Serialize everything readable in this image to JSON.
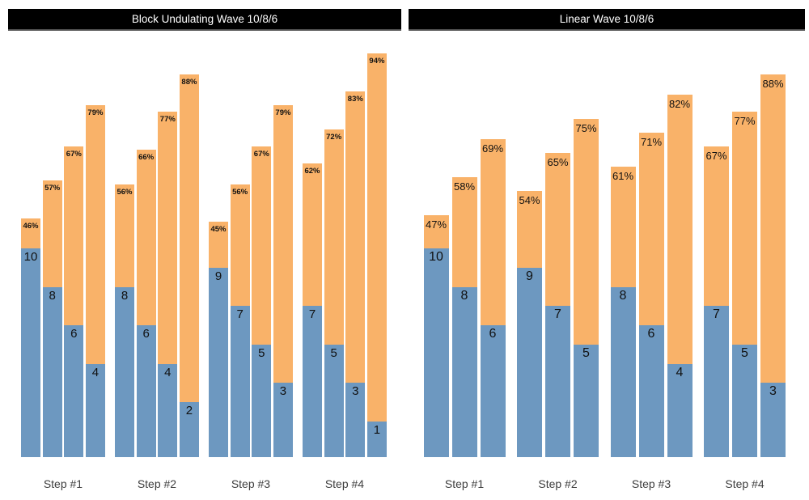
{
  "colors": {
    "background": "#ffffff",
    "reps_bar": "#6d98c0",
    "intensity_bar": "#f9b269",
    "title_bg": "#000000",
    "title_border": "#4e4e4e",
    "title_text": "#ffffff",
    "value_label_text": "#111111",
    "axis_label_text": "#3d3d3d"
  },
  "chart_data": [
    {
      "type": "bar",
      "variant": "grouped-stacked",
      "title": "Block Undulating Wave 10/8/6",
      "categories": [
        "Step #1",
        "Step #2",
        "Step #3",
        "Step #4"
      ],
      "legend": "none",
      "y_axis": "none (values labeled directly on bars)",
      "series_semantics": {
        "bottom_segment": "reps (blue segment, count labeled at its top)",
        "top_segment": "intensity percent (orange segment, % labeled at bar top)"
      },
      "groups": [
        {
          "category": "Step #1",
          "bars": [
            {
              "reps": 10,
              "intensity_pct": 46
            },
            {
              "reps": 8,
              "intensity_pct": 57
            },
            {
              "reps": 6,
              "intensity_pct": 67
            },
            {
              "reps": 4,
              "intensity_pct": 79
            }
          ]
        },
        {
          "category": "Step #2",
          "bars": [
            {
              "reps": 8,
              "intensity_pct": 56
            },
            {
              "reps": 6,
              "intensity_pct": 66
            },
            {
              "reps": 4,
              "intensity_pct": 77
            },
            {
              "reps": 2,
              "intensity_pct": 88
            }
          ]
        },
        {
          "category": "Step #3",
          "bars": [
            {
              "reps": 9,
              "intensity_pct": 45
            },
            {
              "reps": 7,
              "intensity_pct": 56
            },
            {
              "reps": 5,
              "intensity_pct": 67
            },
            {
              "reps": 3,
              "intensity_pct": 79
            }
          ]
        },
        {
          "category": "Step #4",
          "bars": [
            {
              "reps": 7,
              "intensity_pct": 62
            },
            {
              "reps": 5,
              "intensity_pct": 72
            },
            {
              "reps": 3,
              "intensity_pct": 83
            },
            {
              "reps": 1,
              "intensity_pct": 94
            }
          ]
        }
      ]
    },
    {
      "type": "bar",
      "variant": "grouped-stacked",
      "title": "Linear Wave 10/8/6",
      "categories": [
        "Step #1",
        "Step #2",
        "Step #3",
        "Step #4"
      ],
      "legend": "none",
      "y_axis": "none (values labeled directly on bars)",
      "series_semantics": {
        "bottom_segment": "reps (blue segment, count labeled at its top)",
        "top_segment": "intensity percent (orange segment, % labeled at bar top)"
      },
      "groups": [
        {
          "category": "Step #1",
          "bars": [
            {
              "reps": 10,
              "intensity_pct": 47
            },
            {
              "reps": 8,
              "intensity_pct": 58
            },
            {
              "reps": 6,
              "intensity_pct": 69
            }
          ]
        },
        {
          "category": "Step #2",
          "bars": [
            {
              "reps": 9,
              "intensity_pct": 54
            },
            {
              "reps": 7,
              "intensity_pct": 65
            },
            {
              "reps": 5,
              "intensity_pct": 75
            }
          ]
        },
        {
          "category": "Step #3",
          "bars": [
            {
              "reps": 8,
              "intensity_pct": 61
            },
            {
              "reps": 6,
              "intensity_pct": 71
            },
            {
              "reps": 4,
              "intensity_pct": 82
            }
          ]
        },
        {
          "category": "Step #4",
          "bars": [
            {
              "reps": 7,
              "intensity_pct": 67
            },
            {
              "reps": 5,
              "intensity_pct": 77
            },
            {
              "reps": 3,
              "intensity_pct": 88
            }
          ]
        }
      ]
    }
  ]
}
